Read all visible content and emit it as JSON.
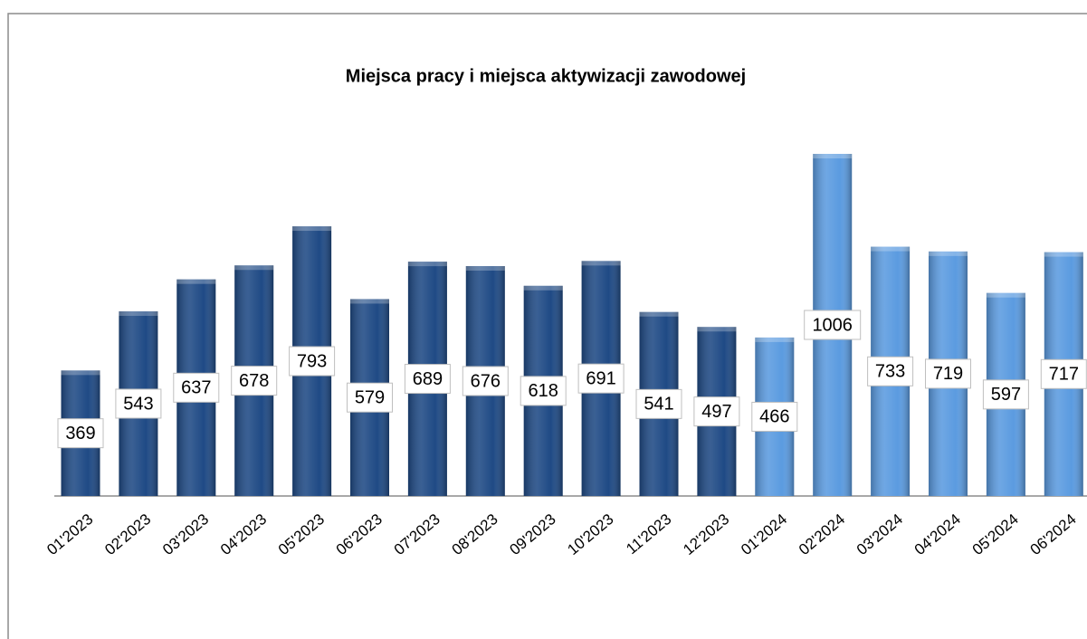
{
  "chart_data": {
    "type": "bar",
    "title": "Miejsca pracy i miejsca aktywizacji zawodowej",
    "categories": [
      "01'2023",
      "02'2023",
      "03'2023",
      "04'2023",
      "05'2023",
      "06'2023",
      "07'2023",
      "08'2023",
      "09'2023",
      "10'2023",
      "11'2023",
      "12'2023",
      "01'2024",
      "02'2024",
      "03'2024",
      "04'2024",
      "05'2024",
      "06'2024"
    ],
    "values": [
      369,
      543,
      637,
      678,
      793,
      579,
      689,
      676,
      618,
      691,
      541,
      497,
      466,
      1006,
      733,
      719,
      597,
      717
    ],
    "colors": [
      "#1f4a85",
      "#1f4a85",
      "#1f4a85",
      "#1f4a85",
      "#1f4a85",
      "#1f4a85",
      "#1f4a85",
      "#1f4a85",
      "#1f4a85",
      "#1f4a85",
      "#1f4a85",
      "#1f4a85",
      "#5b9be0",
      "#5b9be0",
      "#5b9be0",
      "#5b9be0",
      "#5b9be0",
      "#5b9be0"
    ],
    "data_labels": true
  }
}
